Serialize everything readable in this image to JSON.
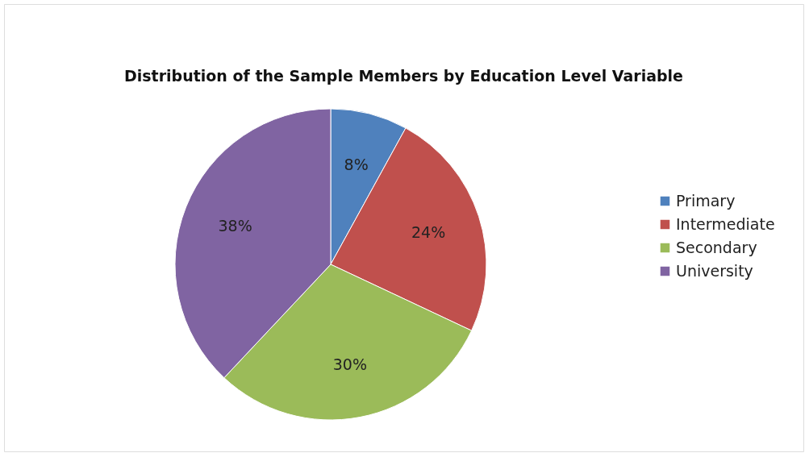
{
  "chart_data": {
    "type": "pie",
    "title": "Distribution of the Sample Members by Education Level Variable",
    "categories": [
      "Primary",
      "Intermediate",
      "Secondary",
      "University"
    ],
    "values": [
      8,
      24,
      30,
      38
    ],
    "colors": [
      "#4f81bd",
      "#c0504d",
      "#9bbb59",
      "#8064a2"
    ],
    "value_labels": [
      "8%",
      "24%",
      "30%",
      "38%"
    ],
    "legend": "right"
  }
}
